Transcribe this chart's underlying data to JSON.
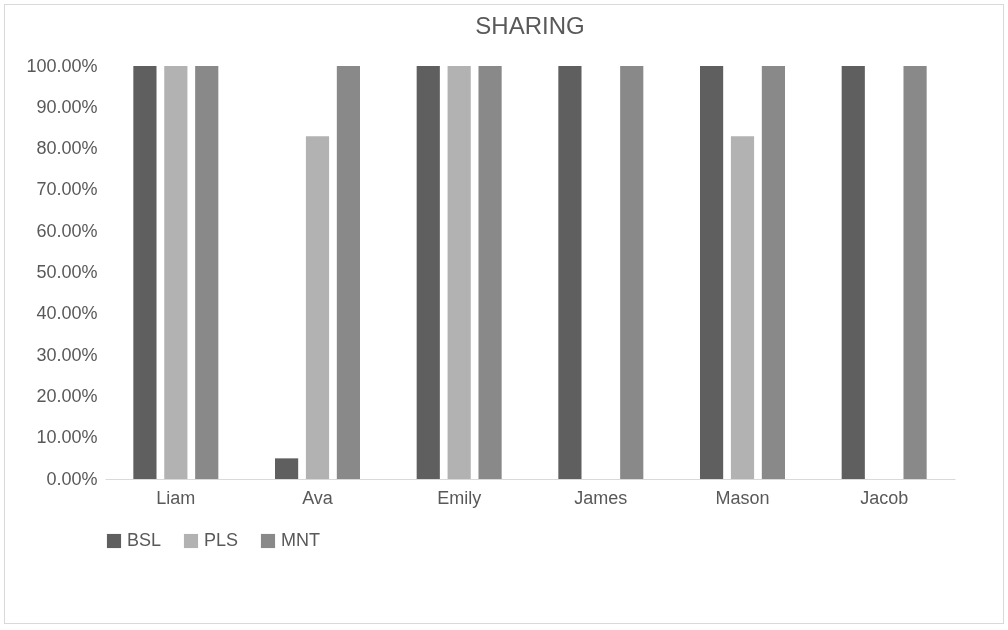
{
  "chart_data": {
    "type": "bar",
    "title": "SHARING",
    "categories": [
      "Liam",
      "Ava",
      "Emily",
      "James",
      "Mason",
      "Jacob"
    ],
    "series": [
      {
        "name": "BSL",
        "color": "#5f5f5f",
        "values": [
          100,
          5,
          100,
          100,
          100,
          100
        ]
      },
      {
        "name": "PLS",
        "color": "#b2b2b2",
        "values": [
          100,
          83,
          100,
          0,
          83,
          0
        ]
      },
      {
        "name": "MNT",
        "color": "#898989",
        "values": [
          100,
          100,
          100,
          100,
          100,
          100
        ]
      }
    ],
    "ylim": [
      0,
      100
    ],
    "yticks": [
      {
        "value": 0,
        "label": "0.00%"
      },
      {
        "value": 10,
        "label": "10.00%"
      },
      {
        "value": 20,
        "label": "20.00%"
      },
      {
        "value": 30,
        "label": "30.00%"
      },
      {
        "value": 40,
        "label": "40.00%"
      },
      {
        "value": 50,
        "label": "50.00%"
      },
      {
        "value": 60,
        "label": "60.00%"
      },
      {
        "value": 70,
        "label": "70.00%"
      },
      {
        "value": 80,
        "label": "80.00%"
      },
      {
        "value": 90,
        "label": "90.00%"
      },
      {
        "value": 100,
        "label": "100.00%"
      }
    ],
    "grid": false,
    "legend": "bottom"
  }
}
